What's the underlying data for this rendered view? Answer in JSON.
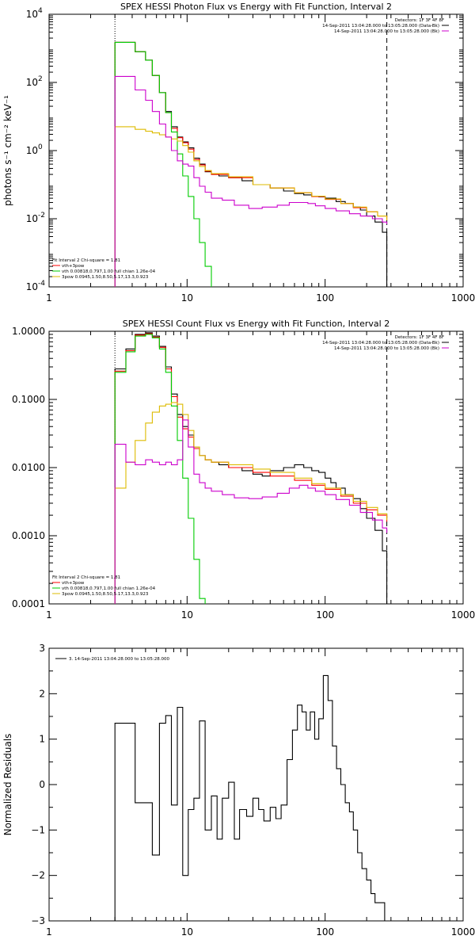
{
  "chart_data": [
    {
      "type": "line",
      "title": "SPEX HESSI Photon Flux vs Energy with Fit Function, Interval 2",
      "ylabel": "photons s⁻¹ cm⁻² keV⁻¹",
      "xlabel": "",
      "xscale": "log",
      "yscale": "log",
      "xlim": [
        1,
        1000
      ],
      "ylim": [
        0.0001,
        10000
      ],
      "xticks": [
        {
          "value": 1,
          "label": "1"
        },
        {
          "value": 10,
          "label": "10"
        },
        {
          "value": 100,
          "label": "100"
        },
        {
          "value": 1000,
          "label": "1000"
        }
      ],
      "yticks": [
        {
          "value": 0.0001,
          "label": "10",
          "exp": "-4"
        },
        {
          "value": 0.01,
          "label": "10",
          "exp": "-2"
        },
        {
          "value": 1,
          "label": "10",
          "exp": "0"
        },
        {
          "value": 100,
          "label": "10",
          "exp": "2"
        },
        {
          "value": 10000,
          "label": "10",
          "exp": "4"
        }
      ],
      "vlines": [
        {
          "x": 3,
          "style": "dotted",
          "color": "#000000"
        },
        {
          "x": 280,
          "style": "dashed",
          "color": "#000000"
        }
      ],
      "legend_top": [
        "Detectors: 1F 3F 4F 8F",
        "14-Sep-2011 13:04:28.000 to 13:05:28.000 (Data-Bk)",
        "14-Sep-2011 13:04:28.000 to 13:05:28.000 (Bk)"
      ],
      "legend_top_colors": [
        "",
        "#000000",
        "#cc00cc"
      ],
      "legend_bottom": [
        "Fit Interval 2   Chi-square = 1.81",
        "vth+3pow",
        "vth 0.00818,0.797,1.00  full chian 1.26e-04",
        "3pow 0.0945,1.50,8.50,5.17,13.3,0.923"
      ],
      "legend_bottom_colors": [
        "",
        "#ff0000",
        "#00cc00",
        "#ddbb00"
      ],
      "series": [
        {
          "color": "#000000",
          "x": [
            3,
            3.6,
            4.2,
            5,
            5.6,
            6.3,
            7,
            7.7,
            8.5,
            9.3,
            10.2,
            11.2,
            12.3,
            13.5,
            15,
            17,
            20,
            25,
            30,
            40,
            50,
            60,
            70,
            80,
            90,
            100,
            120,
            140,
            160,
            180,
            200,
            230,
            260,
            280
          ],
          "y": [
            1500,
            1500,
            800,
            450,
            160,
            50,
            14,
            5,
            2.5,
            1.8,
            1.2,
            0.6,
            0.4,
            0.24,
            0.2,
            0.18,
            0.16,
            0.13,
            0.1,
            0.08,
            0.065,
            0.055,
            0.05,
            0.045,
            0.044,
            0.04,
            0.032,
            0.028,
            0.022,
            0.018,
            0.012,
            0.008,
            0.004,
            0.0001
          ]
        },
        {
          "color": "#ff0000",
          "x": [
            3,
            3.6,
            4.2,
            5,
            5.6,
            6.3,
            7,
            7.7,
            8.5,
            9.3,
            10.2,
            11.2,
            12.3,
            13.5,
            15,
            20,
            30,
            40,
            60,
            80,
            100,
            130,
            160,
            200,
            240,
            280
          ],
          "y": [
            1500,
            1500,
            800,
            450,
            160,
            50,
            13,
            4.5,
            2.4,
            1.7,
            1.1,
            0.55,
            0.38,
            0.25,
            0.2,
            0.16,
            0.1,
            0.08,
            0.058,
            0.045,
            0.037,
            0.028,
            0.021,
            0.016,
            0.012,
            0.009
          ]
        },
        {
          "color": "#00cc00",
          "x": [
            3,
            3.6,
            4.2,
            5,
            5.6,
            6.3,
            7,
            7.7,
            8.5,
            9.3,
            10.2,
            11.2,
            12.3,
            13.5,
            15
          ],
          "y": [
            1500,
            1500,
            800,
            450,
            160,
            50,
            13,
            3.5,
            0.8,
            0.18,
            0.045,
            0.01,
            0.002,
            0.0004,
            0.0001
          ]
        },
        {
          "color": "#ddbb00",
          "x": [
            3,
            3.6,
            4.2,
            5,
            5.6,
            6.3,
            7,
            7.7,
            8.5,
            9.3,
            10.2,
            11.2,
            12.3,
            13.5,
            15,
            20,
            30,
            40,
            60,
            80,
            100,
            130,
            160,
            200,
            240,
            280
          ],
          "y": [
            5,
            5,
            4.2,
            3.7,
            3.3,
            2.9,
            2.5,
            2.2,
            1.9,
            1.4,
            0.9,
            0.5,
            0.34,
            0.26,
            0.21,
            0.17,
            0.1,
            0.08,
            0.058,
            0.046,
            0.038,
            0.028,
            0.022,
            0.016,
            0.012,
            0.009
          ]
        },
        {
          "color": "#cc00cc",
          "x": [
            3,
            3.6,
            4.2,
            5,
            5.6,
            6.3,
            7,
            7.7,
            8.5,
            9.3,
            10.2,
            11.2,
            12.3,
            13.5,
            15,
            18,
            22,
            28,
            35,
            45,
            55,
            65,
            75,
            85,
            100,
            120,
            150,
            180,
            220,
            260,
            280
          ],
          "y": [
            150,
            150,
            60,
            30,
            14,
            6,
            2.5,
            1.0,
            0.5,
            0.4,
            0.35,
            0.16,
            0.09,
            0.06,
            0.04,
            0.035,
            0.025,
            0.02,
            0.022,
            0.025,
            0.03,
            0.03,
            0.028,
            0.024,
            0.02,
            0.017,
            0.014,
            0.012,
            0.01,
            0.008,
            0.007
          ]
        }
      ]
    },
    {
      "type": "line",
      "title": "SPEX HESSI Count Flux vs Energy with Fit Function, Interval 2",
      "ylabel": "",
      "xlabel": "",
      "xscale": "log",
      "yscale": "log",
      "xlim": [
        1,
        1000
      ],
      "ylim": [
        0.0001,
        1.0
      ],
      "xticks": [
        {
          "value": 1,
          "label": "1"
        },
        {
          "value": 10,
          "label": "10"
        },
        {
          "value": 100,
          "label": "100"
        },
        {
          "value": 1000,
          "label": "1000"
        }
      ],
      "yticks": [
        {
          "value": 0.0001,
          "label": "0.0001"
        },
        {
          "value": 0.001,
          "label": "0.0010"
        },
        {
          "value": 0.01,
          "label": "0.0100"
        },
        {
          "value": 0.1,
          "label": "0.1000"
        },
        {
          "value": 1.0,
          "label": "1.0000"
        }
      ],
      "vlines": [
        {
          "x": 3,
          "style": "dotted",
          "color": "#000000"
        },
        {
          "x": 280,
          "style": "dashed",
          "color": "#000000"
        }
      ],
      "legend_top": [
        "Detectors: 1F 3F 4F 8F",
        "14-Sep-2011 13:04:28.000 to 13:05:28.000 (Data-Bk)",
        "14-Sep-2011 13:04:28.000 to 13:05:28.000 (Bk)"
      ],
      "legend_top_colors": [
        "",
        "#000000",
        "#cc00cc"
      ],
      "legend_bottom": [
        "Fit Interval 2   Chi-square = 1.81",
        "vth+3pow",
        "vth 0.00818,0.797,1.00  full chian 1.26e-04",
        "3pow 0.0945,1.50,8.50,5.17,13.3,0.923"
      ],
      "legend_bottom_colors": [
        "",
        "#ff0000",
        "#00cc00",
        "#ddbb00"
      ],
      "series": [
        {
          "color": "#000000",
          "x": [
            3,
            3.6,
            4.2,
            5,
            5.6,
            6.3,
            7,
            7.7,
            8.5,
            9.3,
            10.2,
            11.2,
            12.3,
            13.5,
            15,
            17,
            20,
            25,
            30,
            35,
            40,
            50,
            60,
            70,
            80,
            90,
            100,
            110,
            120,
            140,
            160,
            180,
            200,
            230,
            260,
            280
          ],
          "y": [
            0.28,
            0.55,
            0.9,
            0.95,
            0.85,
            0.6,
            0.3,
            0.12,
            0.06,
            0.04,
            0.03,
            0.02,
            0.015,
            0.013,
            0.012,
            0.011,
            0.01,
            0.009,
            0.008,
            0.0075,
            0.009,
            0.01,
            0.011,
            0.01,
            0.009,
            0.0085,
            0.007,
            0.006,
            0.005,
            0.004,
            0.0035,
            0.0025,
            0.0018,
            0.0012,
            0.0006,
            0.0001
          ]
        },
        {
          "color": "#ff0000",
          "x": [
            3,
            3.6,
            4.2,
            5,
            5.6,
            6.3,
            7,
            7.7,
            8.5,
            9.3,
            10.2,
            11.2,
            12.3,
            13.5,
            15,
            20,
            30,
            40,
            60,
            80,
            100,
            130,
            160,
            200,
            240,
            280
          ],
          "y": [
            0.26,
            0.52,
            0.88,
            0.92,
            0.82,
            0.58,
            0.28,
            0.11,
            0.055,
            0.037,
            0.028,
            0.019,
            0.015,
            0.013,
            0.012,
            0.01,
            0.0085,
            0.0075,
            0.0065,
            0.0055,
            0.0048,
            0.0038,
            0.003,
            0.0024,
            0.002,
            0.0016
          ]
        },
        {
          "color": "#00cc00",
          "x": [
            3,
            3.6,
            4.2,
            5,
            5.6,
            6.3,
            7,
            7.7,
            8.5,
            9.3,
            10.2,
            11.2,
            12.3,
            13.5
          ],
          "y": [
            0.25,
            0.5,
            0.85,
            0.9,
            0.8,
            0.55,
            0.25,
            0.08,
            0.025,
            0.007,
            0.0018,
            0.00045,
            0.00012,
            0.0001
          ]
        },
        {
          "color": "#ddbb00",
          "x": [
            3,
            3.6,
            4.2,
            5,
            5.6,
            6.3,
            7,
            7.7,
            8.5,
            9.3,
            10.2,
            11.2,
            12.3,
            13.5,
            15,
            20,
            30,
            40,
            60,
            80,
            100,
            130,
            160,
            200,
            240,
            280
          ],
          "y": [
            0.005,
            0.012,
            0.025,
            0.045,
            0.065,
            0.08,
            0.085,
            0.09,
            0.085,
            0.06,
            0.035,
            0.02,
            0.015,
            0.013,
            0.012,
            0.011,
            0.0095,
            0.0085,
            0.007,
            0.0058,
            0.005,
            0.004,
            0.0032,
            0.0026,
            0.0021,
            0.0017
          ]
        },
        {
          "color": "#cc00cc",
          "x": [
            3,
            3.6,
            4.2,
            5,
            5.6,
            6.3,
            7,
            7.7,
            8.5,
            9.3,
            10.2,
            11.2,
            12.3,
            13.5,
            15,
            18,
            22,
            28,
            35,
            45,
            55,
            65,
            75,
            85,
            100,
            120,
            150,
            180,
            220,
            260,
            280
          ],
          "y": [
            0.022,
            0.012,
            0.011,
            0.013,
            0.012,
            0.011,
            0.012,
            0.011,
            0.013,
            0.05,
            0.02,
            0.008,
            0.006,
            0.005,
            0.0045,
            0.004,
            0.0036,
            0.0035,
            0.0037,
            0.0042,
            0.005,
            0.0055,
            0.005,
            0.0045,
            0.004,
            0.0034,
            0.0028,
            0.0022,
            0.0017,
            0.0013,
            0.0011
          ]
        }
      ]
    },
    {
      "type": "line",
      "title": "",
      "ylabel": "Normalized Residuals",
      "xlabel": "",
      "xscale": "log",
      "yscale": "linear",
      "xlim": [
        1,
        1000
      ],
      "ylim": [
        -3,
        3
      ],
      "xticks": [
        {
          "value": 1,
          "label": "1"
        },
        {
          "value": 10,
          "label": "10"
        },
        {
          "value": 100,
          "label": "100"
        },
        {
          "value": 1000,
          "label": "1000"
        }
      ],
      "yticks": [
        {
          "value": -3,
          "label": "−3"
        },
        {
          "value": -2,
          "label": "−2"
        },
        {
          "value": -1,
          "label": "−1"
        },
        {
          "value": 0,
          "label": "0"
        },
        {
          "value": 1,
          "label": "1"
        },
        {
          "value": 2,
          "label": "2"
        },
        {
          "value": 3,
          "label": "3"
        }
      ],
      "legend_top_left": "3. 14-Sep-2011 13:04:28.000 to 13:05:28.000",
      "series": [
        {
          "color": "#000000",
          "x": [
            3,
            3.6,
            4.2,
            5,
            5.6,
            6.3,
            7,
            7.7,
            8.5,
            9.3,
            10.2,
            11.2,
            12.3,
            13.5,
            15,
            16.5,
            18,
            20,
            22,
            24,
            27,
            30,
            33,
            36,
            40,
            44,
            48,
            53,
            58,
            63,
            68,
            73,
            78,
            84,
            90,
            97,
            105,
            113,
            121,
            130,
            140,
            150,
            160,
            172,
            185,
            200,
            215,
            230,
            250,
            270,
            280
          ],
          "y": [
            1.35,
            1.35,
            -0.4,
            -0.4,
            -1.55,
            1.35,
            1.52,
            -0.45,
            1.7,
            -2.0,
            -0.55,
            -0.3,
            1.4,
            -1.0,
            -0.25,
            -1.2,
            -0.3,
            0.05,
            -1.2,
            -0.55,
            -0.7,
            -0.3,
            -0.55,
            -0.8,
            -0.5,
            -0.75,
            -0.45,
            0.55,
            1.2,
            1.75,
            1.6,
            1.2,
            1.6,
            1.0,
            1.45,
            2.4,
            1.85,
            0.85,
            0.35,
            0.0,
            -0.4,
            -0.6,
            -1.0,
            -1.5,
            -1.85,
            -2.1,
            -2.4,
            -2.6,
            -2.6,
            -3.0,
            -3.0
          ]
        }
      ]
    }
  ]
}
